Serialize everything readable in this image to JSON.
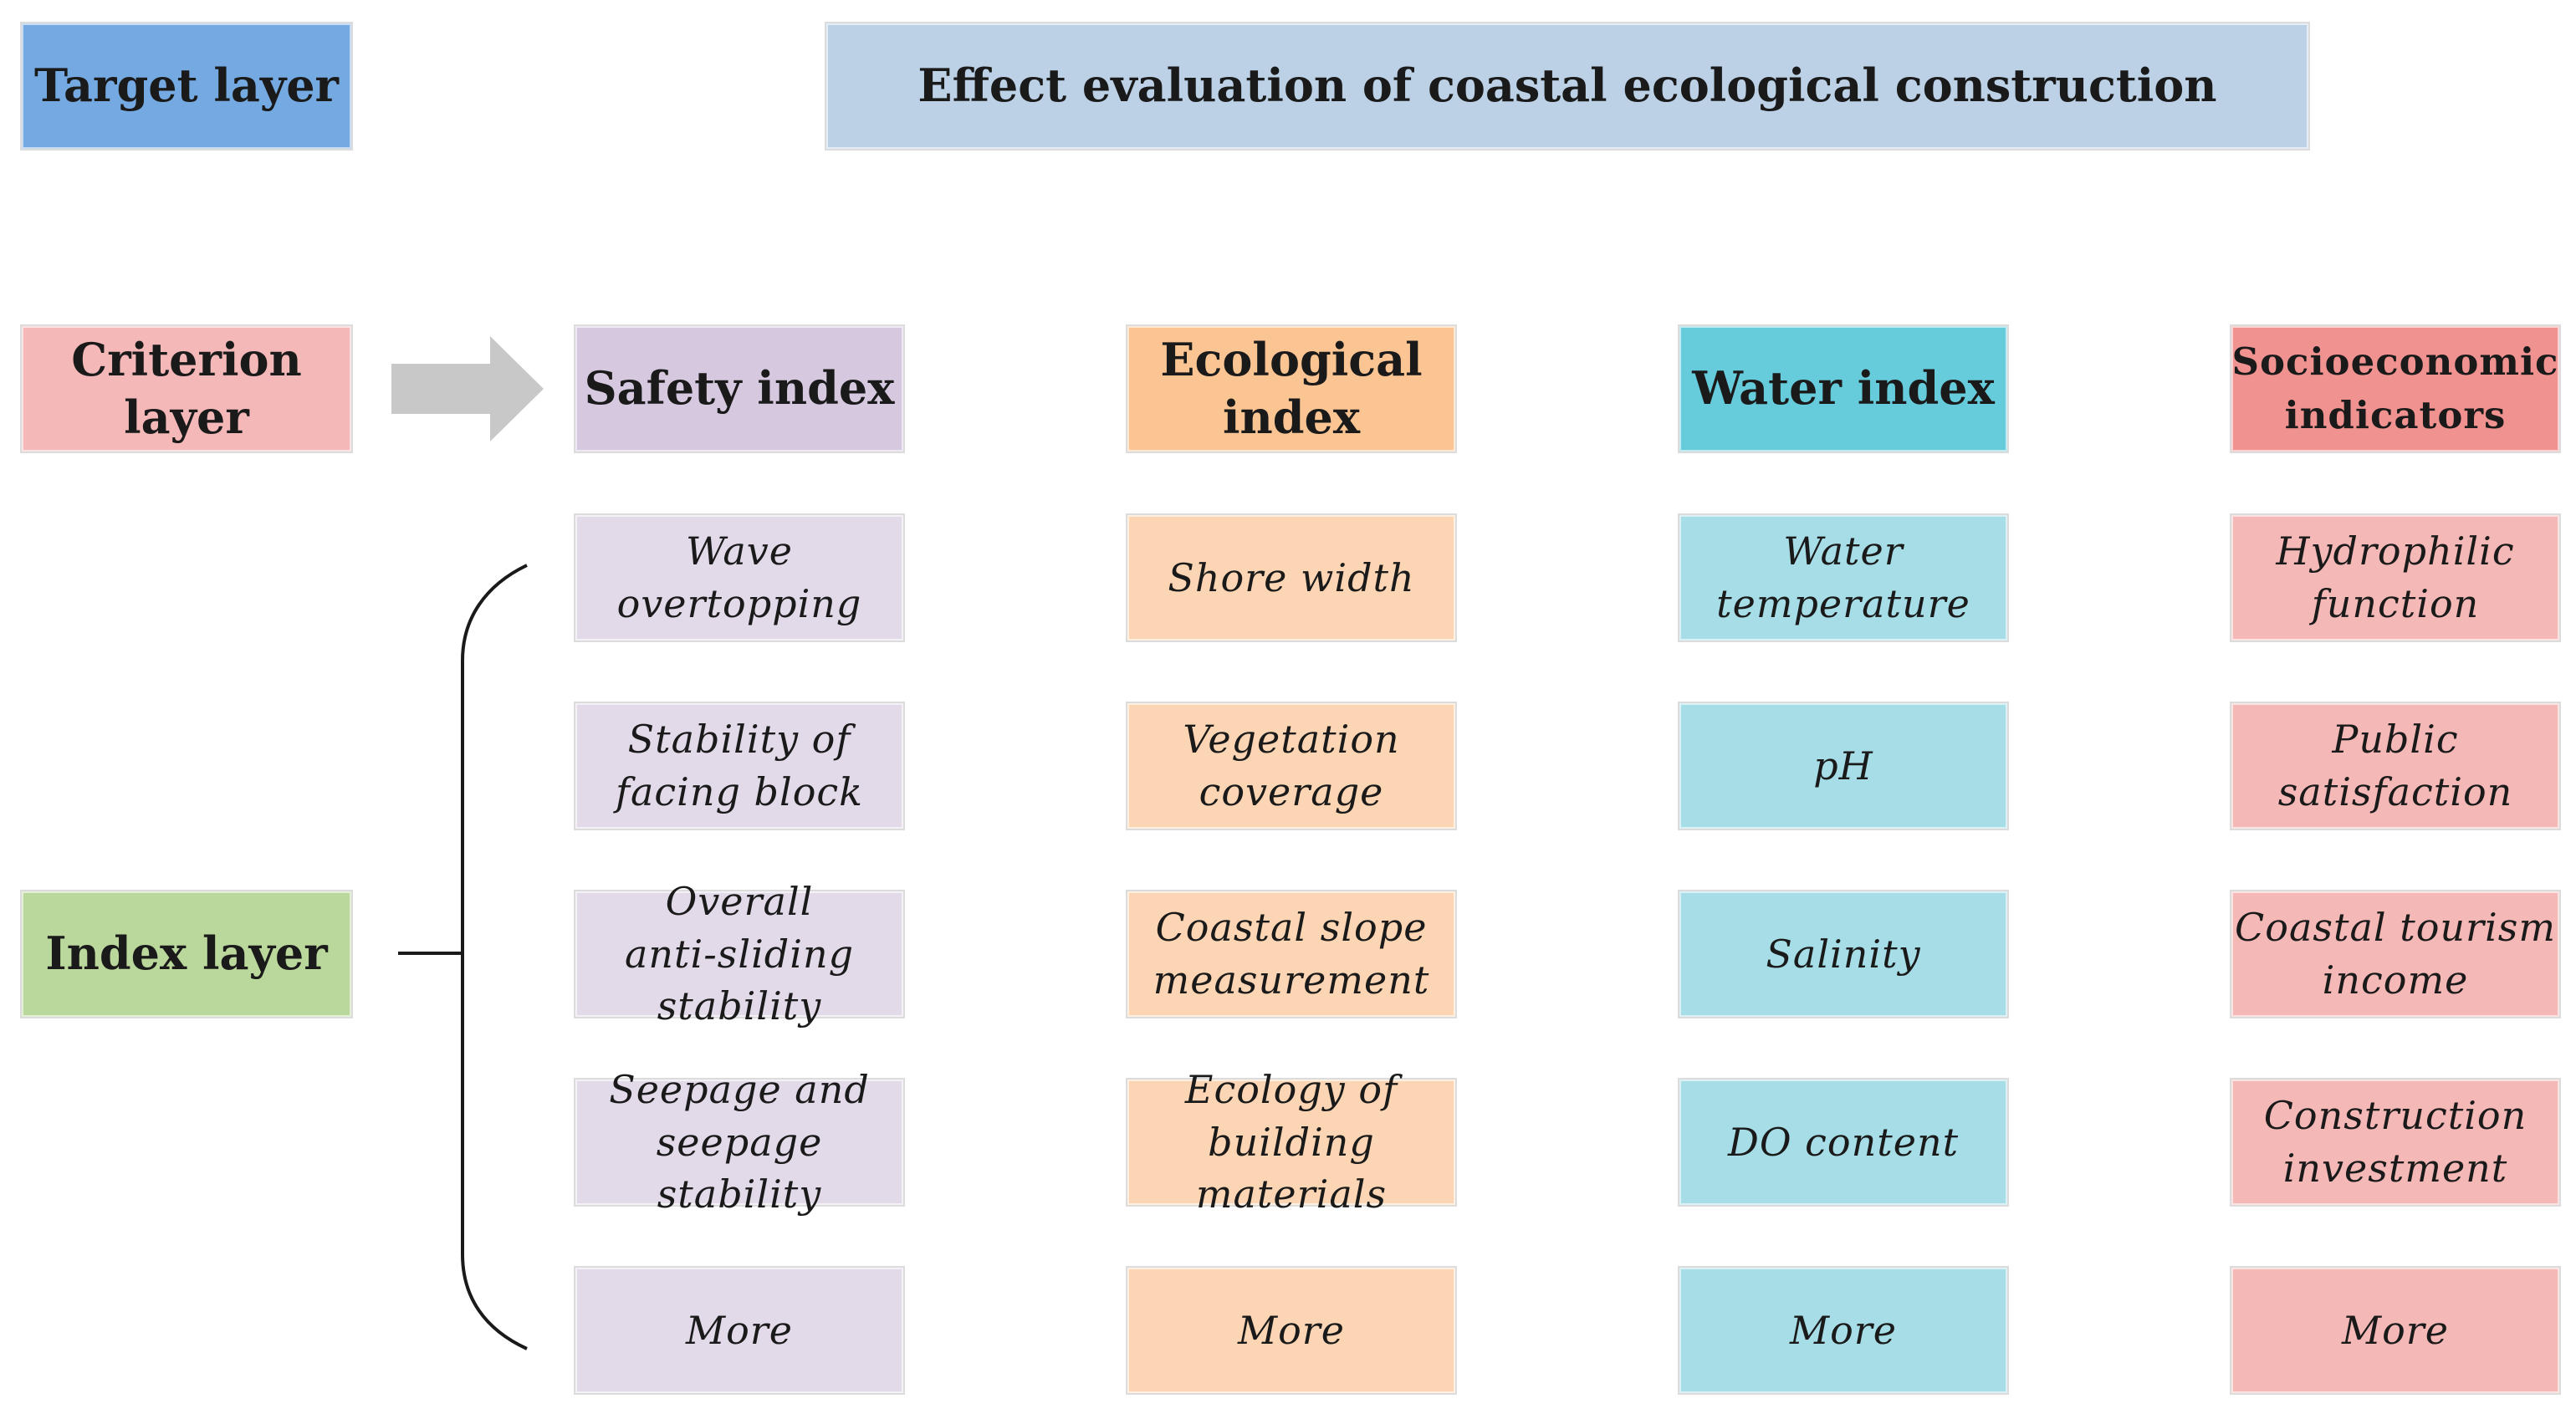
{
  "colors": {
    "target_label": "#74a9e1",
    "target_box": "#bcd1e6",
    "criterion_label": "#f3b8b7",
    "index_label": "#bad79c",
    "arrow": "#c8c8c8",
    "bracket": "#1a1a1a"
  },
  "layers": {
    "target": "Target layer",
    "criterion": "Criterion\nlayer",
    "index": "Index layer"
  },
  "goal": "Effect evaluation of coastal ecological construction",
  "arrow_icon": "right-arrow-icon",
  "criteria": [
    {
      "label": "Safety index",
      "color": "#d5c8df",
      "item_color": "#e2d9e9",
      "items": [
        "Wave\novertopping",
        "Stability of\nfacing block",
        "Overall\nanti-sliding\nstability",
        "Seepage and\nseepage\nstability",
        "More"
      ]
    },
    {
      "label": "Ecological\nindex",
      "color": "#fbc593",
      "item_color": "#fcd6b4",
      "items": [
        "Shore width",
        "Vegetation\ncoverage",
        "Coastal slope\nmeasurement",
        "Ecology of\nbuilding\nmaterials",
        "More"
      ]
    },
    {
      "label": "Water index",
      "color": "#66cbdb",
      "item_color": "#a6dde7",
      "items": [
        "Water\ntemperature",
        "pH",
        "Salinity",
        "DO content",
        "More"
      ]
    },
    {
      "label": "Socioeconomic\nindicators",
      "color": "#ef9290",
      "item_color": "#f4b8b7",
      "items": [
        "Hydrophilic\nfunction",
        "Public\nsatisfaction",
        "Coastal tourism\nincome",
        "Construction\ninvestment",
        "More"
      ]
    }
  ]
}
